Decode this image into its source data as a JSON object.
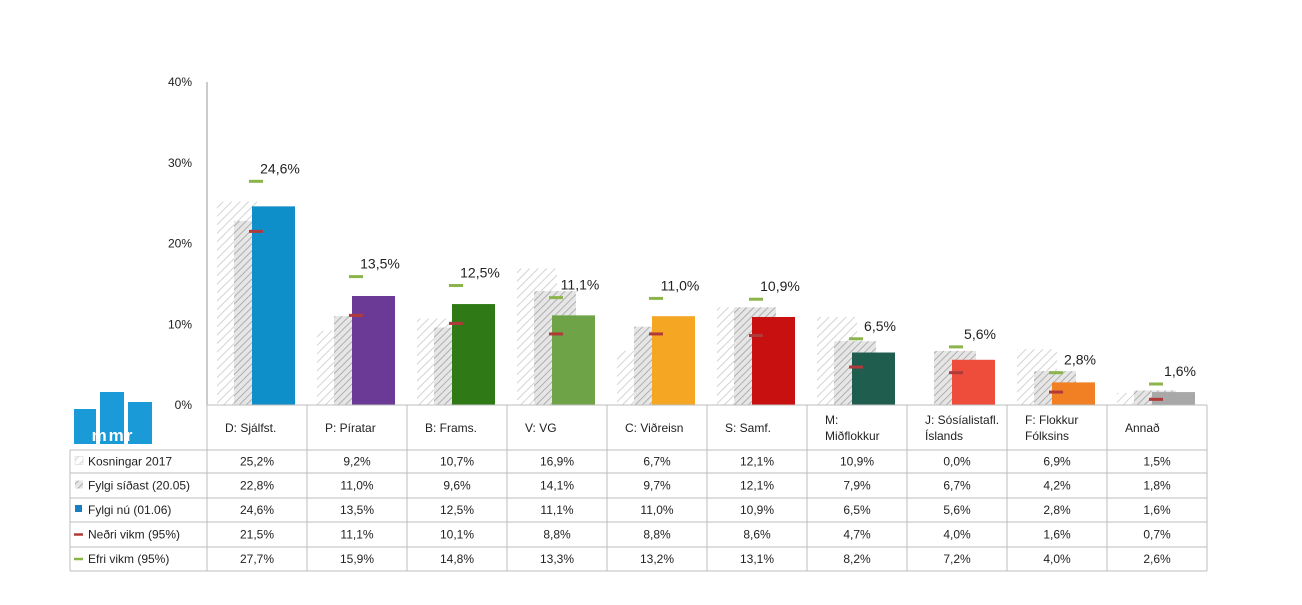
{
  "chart_data": {
    "type": "bar",
    "categories": [
      [
        "D: Sjálfst."
      ],
      [
        "P: Píratar"
      ],
      [
        "B: Frams."
      ],
      [
        "V: VG"
      ],
      [
        "C: Viðreisn"
      ],
      [
        "S: Samf."
      ],
      [
        "M:",
        "Miðflokkur"
      ],
      [
        "J: Sósíalistafl.",
        "Íslands"
      ],
      [
        "F: Flokkur",
        "Fólksins"
      ],
      [
        "Annað"
      ]
    ],
    "ylim": [
      0,
      40
    ],
    "yticks": [
      {
        "value": 0,
        "label": "0%"
      },
      {
        "value": 10,
        "label": "10%"
      },
      {
        "value": 20,
        "label": "20%"
      },
      {
        "value": 30,
        "label": "30%"
      },
      {
        "value": 40,
        "label": "40%"
      }
    ],
    "series": [
      {
        "name": "Kosningar 2017",
        "style": "hatch-light",
        "values": [
          25.2,
          9.2,
          10.7,
          16.9,
          6.7,
          12.1,
          10.9,
          0.0,
          6.9,
          1.5
        ],
        "labels": [
          "25,2%",
          "9,2%",
          "10,7%",
          "16,9%",
          "6,7%",
          "12,1%",
          "10,9%",
          "0,0%",
          "6,9%",
          "1,5%"
        ]
      },
      {
        "name": "Fylgi síðast (20.05)",
        "style": "hatch-dark",
        "values": [
          22.8,
          11.0,
          9.6,
          14.1,
          9.7,
          12.1,
          7.9,
          6.7,
          4.2,
          1.8
        ],
        "labels": [
          "22,8%",
          "11,0%",
          "9,6%",
          "14,1%",
          "9,7%",
          "12,1%",
          "7,9%",
          "6,7%",
          "4,2%",
          "1,8%"
        ]
      },
      {
        "name": "Fylgi nú (01.06)",
        "style": "solid",
        "color": "#1a7fc1",
        "values": [
          24.6,
          13.5,
          12.5,
          11.1,
          11.0,
          10.9,
          6.5,
          5.6,
          2.8,
          1.6
        ],
        "labels": [
          "24,6%",
          "13,5%",
          "12,5%",
          "11,1%",
          "11,0%",
          "10,9%",
          "6,5%",
          "5,6%",
          "2,8%",
          "1,6%"
        ]
      },
      {
        "name": "Neðri vikm (95%)",
        "style": "marker",
        "color": "#b03a3a",
        "values": [
          21.5,
          11.1,
          10.1,
          8.8,
          8.8,
          8.6,
          4.7,
          4.0,
          1.6,
          0.7
        ],
        "labels": [
          "21,5%",
          "11,1%",
          "10,1%",
          "8,8%",
          "8,8%",
          "8,6%",
          "4,7%",
          "4,0%",
          "1,6%",
          "0,7%"
        ]
      },
      {
        "name": "Efri vikm (95%)",
        "style": "marker",
        "color": "#8bb54a",
        "values": [
          27.7,
          15.9,
          14.8,
          13.3,
          13.2,
          13.1,
          8.2,
          7.2,
          4.0,
          2.6
        ],
        "labels": [
          "27,7%",
          "15,9%",
          "14,8%",
          "13,3%",
          "13,2%",
          "13,1%",
          "8,2%",
          "7,2%",
          "4,0%",
          "2,6%"
        ]
      }
    ],
    "bar_colors": [
      "#0f8fc9",
      "#6b3a96",
      "#2f7a16",
      "#6ea348",
      "#f5a623",
      "#c81010",
      "#1f5d4e",
      "#ee4d3c",
      "#f08023",
      "#a8a8a8"
    ],
    "data_labels": [
      "24,6%",
      "13,5%",
      "12,5%",
      "11,1%",
      "11,0%",
      "10,9%",
      "6,5%",
      "5,6%",
      "2,8%",
      "1,6%"
    ]
  },
  "logo": {
    "text": "mmr",
    "color": "#1a9ad6"
  }
}
